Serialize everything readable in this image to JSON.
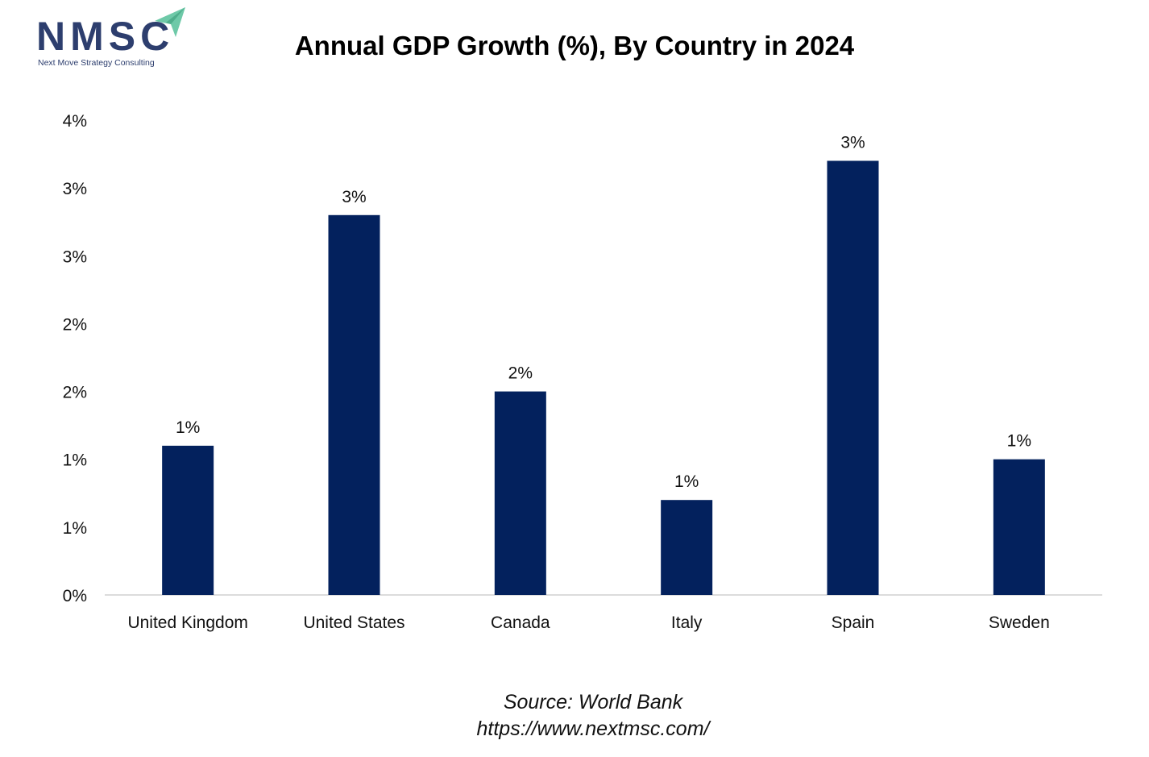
{
  "logo": {
    "text": "NMSC",
    "subtitle": "Next Move Strategy Consulting"
  },
  "footer": {
    "source": "Source: World Bank",
    "url": "https://www.nextmsc.com/"
  },
  "colors": {
    "bar": "#03215d",
    "axis": "#d0d0d0",
    "logo": "#2d3e6e",
    "logo_accent": "#6ec9a8"
  },
  "chart_data": {
    "type": "bar",
    "title": "Annual GDP Growth (%), By Country in 2024",
    "categories": [
      "United Kingdom",
      "United States",
      "Canada",
      "Italy",
      "Spain",
      "Sweden"
    ],
    "values": [
      1.1,
      2.8,
      1.5,
      0.7,
      3.2,
      1.0
    ],
    "data_labels": [
      "1%",
      "3%",
      "2%",
      "1%",
      "3%",
      "1%"
    ],
    "ylim": [
      0,
      3.5
    ],
    "yticks": [
      0,
      0.5,
      1.0,
      1.5,
      2.0,
      2.5,
      3.0,
      3.5
    ],
    "ytick_labels": [
      "0%",
      "1%",
      "1%",
      "2%",
      "2%",
      "3%",
      "3%",
      "4%"
    ],
    "xlabel": "",
    "ylabel": "",
    "grid": false,
    "legend": false
  }
}
